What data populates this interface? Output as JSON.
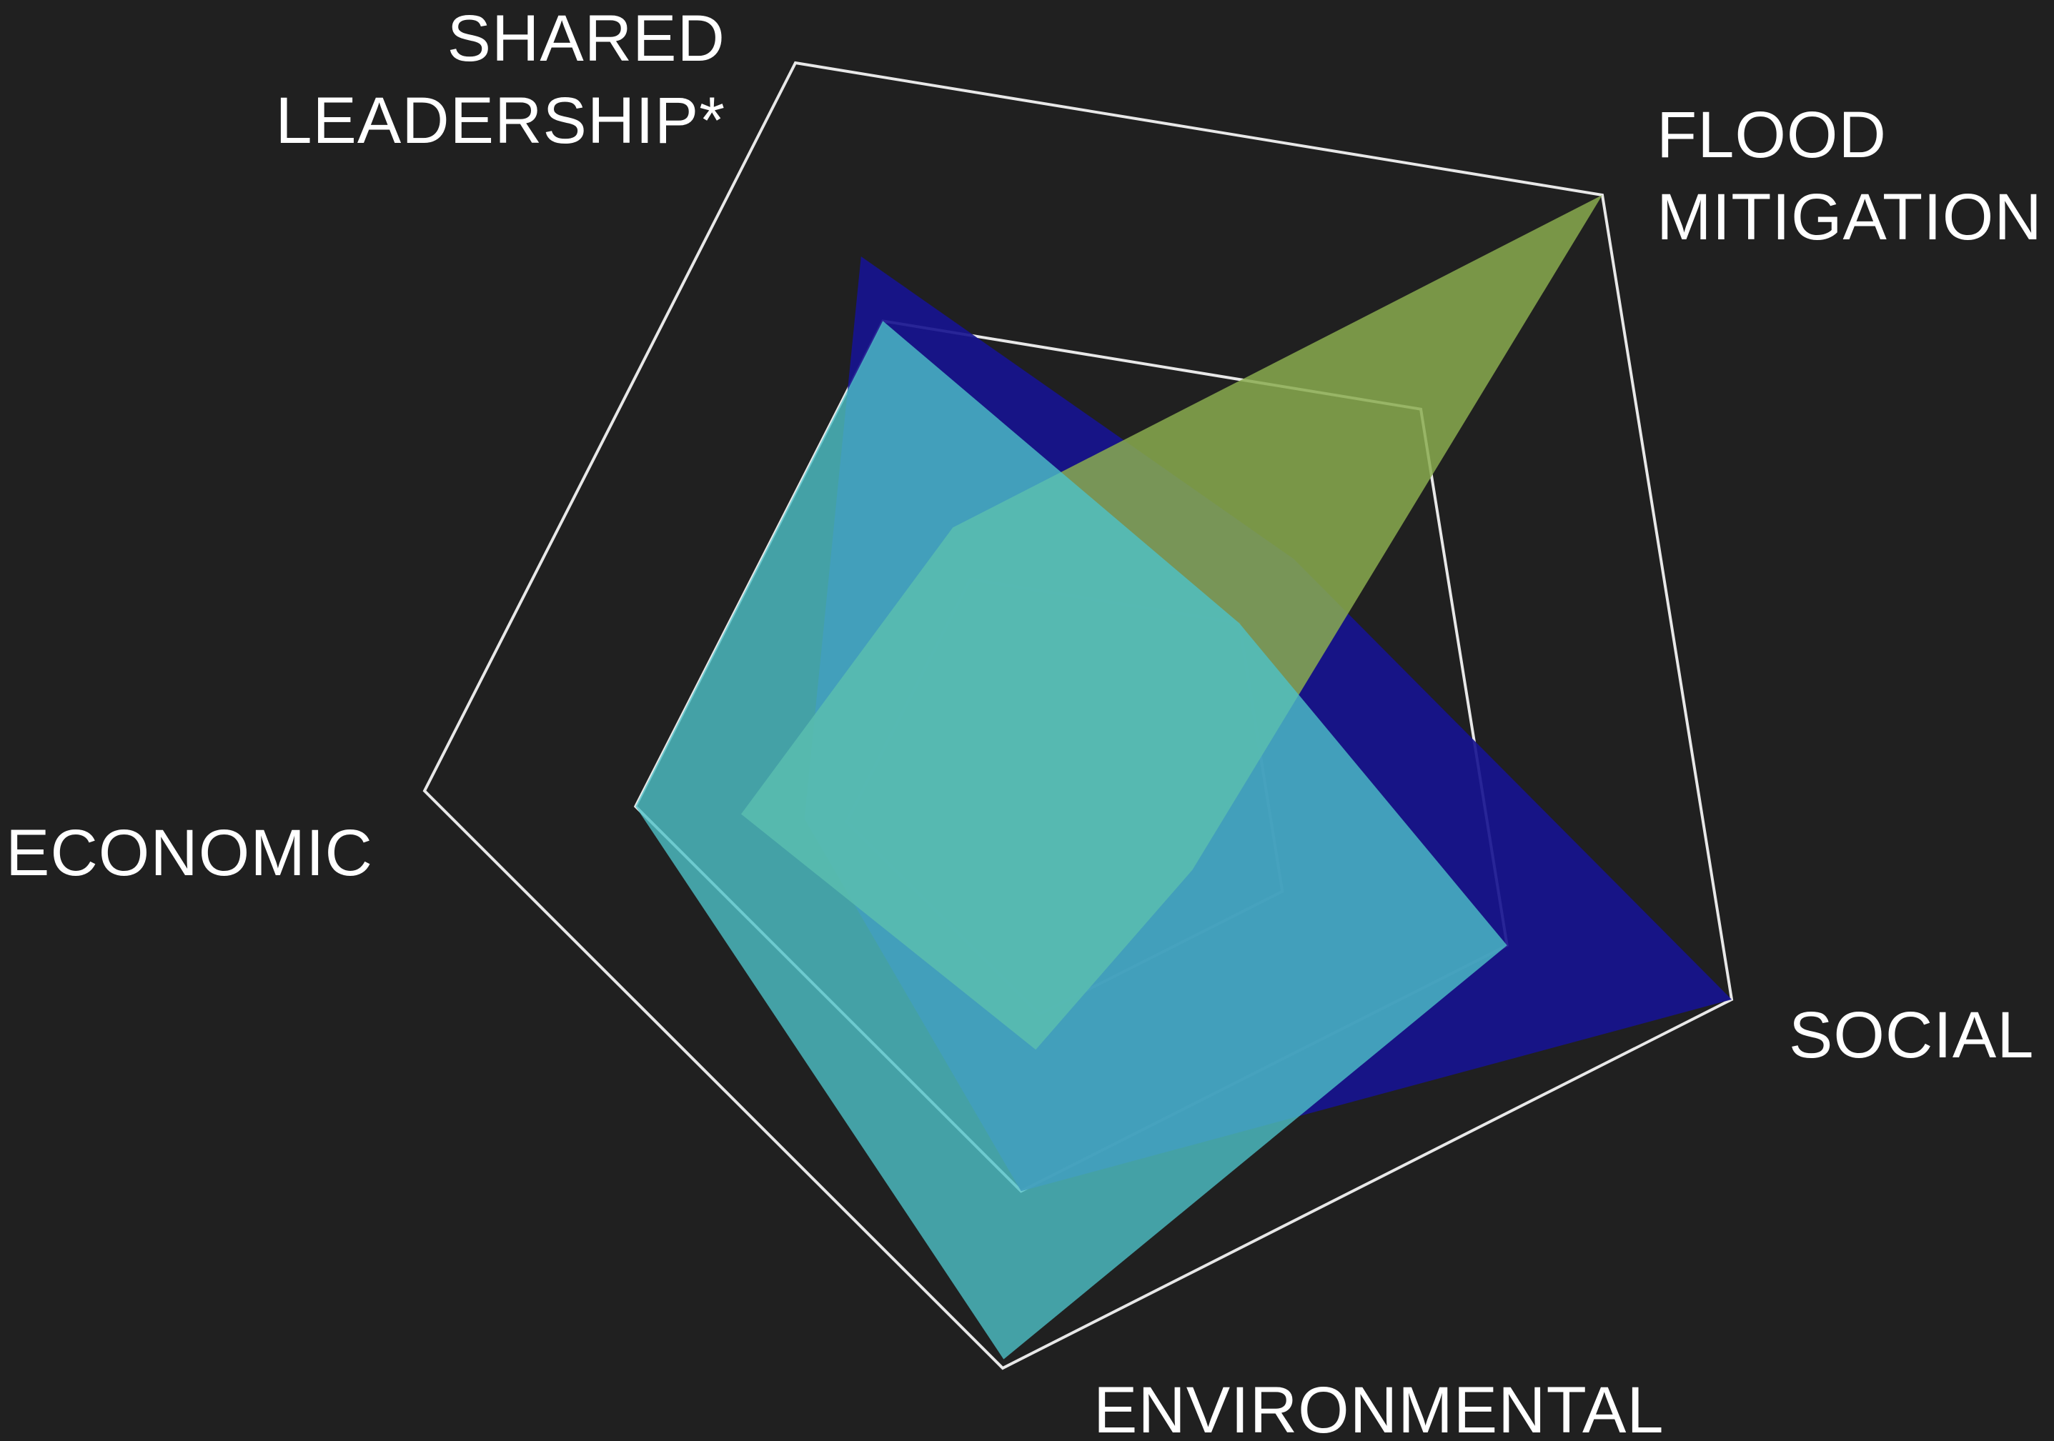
{
  "chart_data": {
    "type": "radar",
    "axes": [
      {
        "key": "shared_leadership",
        "label_lines": [
          "SHARED",
          "LEADERSHIP*"
        ]
      },
      {
        "key": "flood_mitigation",
        "label_lines": [
          "FLOOD",
          "MITIGATION"
        ]
      },
      {
        "key": "social",
        "label_lines": [
          "SOCIAL"
        ]
      },
      {
        "key": "environmental",
        "label_lines": [
          "ENVIRONMENTAL"
        ]
      },
      {
        "key": "economic",
        "label_lines": [
          "ECONOMIC"
        ]
      }
    ],
    "range": [
      0,
      3
    ],
    "grid_levels": [
      1,
      2,
      3
    ],
    "grid": true,
    "series": [
      {
        "values": [
          2.25,
          1.3,
          3.0,
          2.0,
          1.2
        ],
        "color": "#17138f",
        "opacity": 0.92
      },
      {
        "values": [
          1.2,
          3.0,
          0.6,
          1.2,
          1.5
        ],
        "color": "#8aab4f",
        "opacity": 0.85
      },
      {
        "values": [
          2.0,
          1.0,
          2.0,
          2.95,
          2.0
        ],
        "color": "#4ec2c8",
        "opacity": 0.8
      }
    ]
  }
}
